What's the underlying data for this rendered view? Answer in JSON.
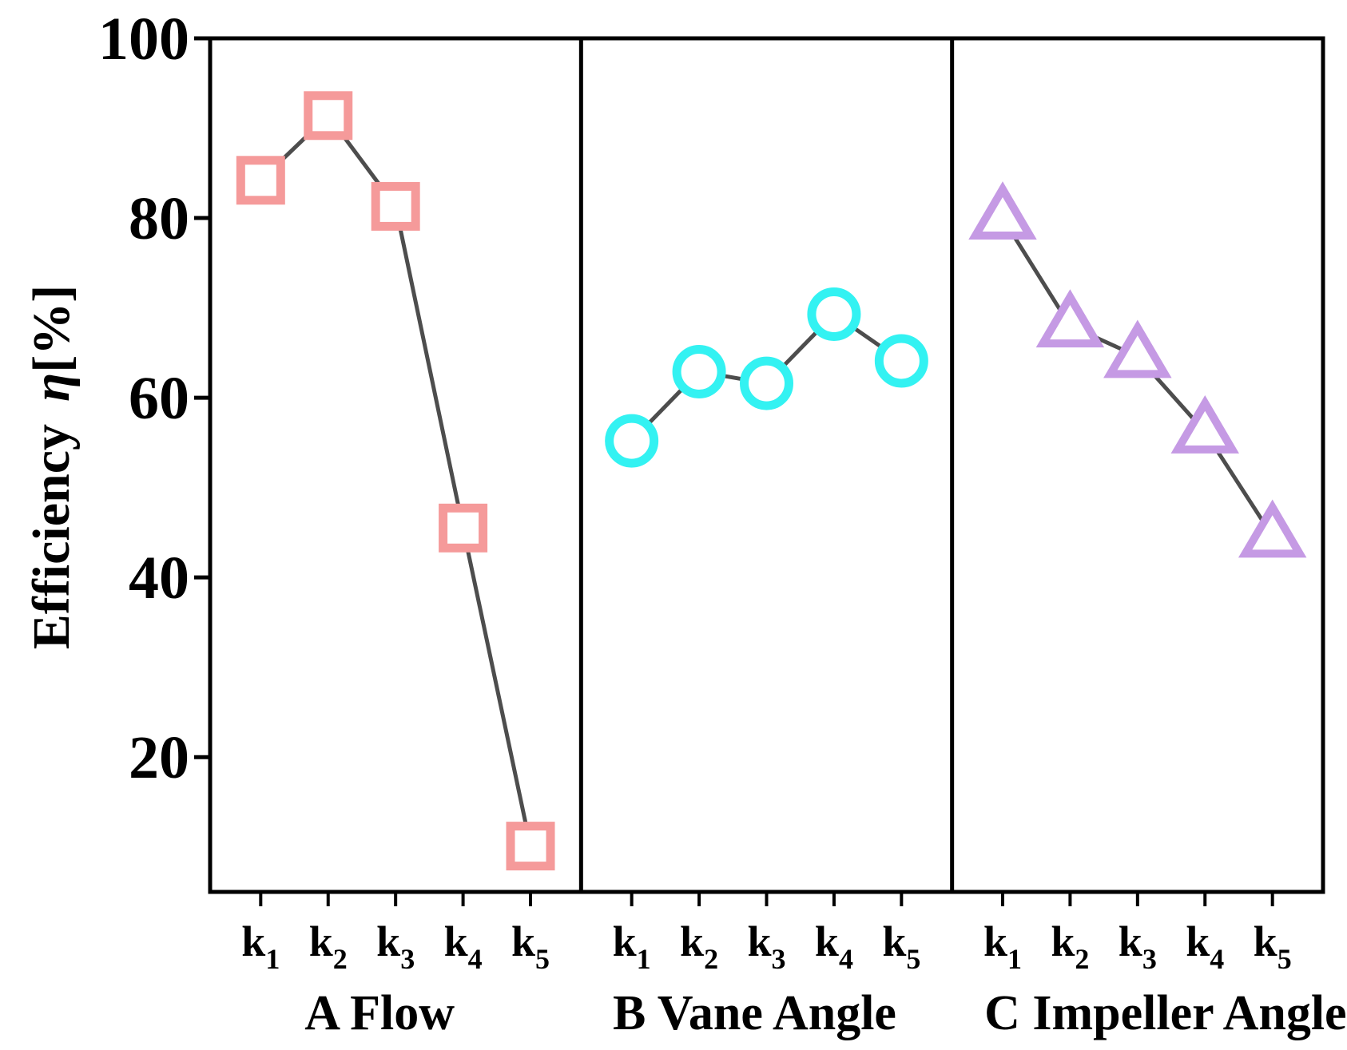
{
  "chart_data": {
    "type": "line",
    "title": "",
    "ylabel_text": "Efficiency",
    "ylabel_symbol": "η",
    "ylabel_unit": "[%]",
    "ylim": [
      5,
      100
    ],
    "yticks": [
      20,
      40,
      60,
      80,
      100
    ],
    "grid": false,
    "line_color": "#4d4d4d",
    "groups": [
      {
        "name": "A Flow",
        "marker": "square",
        "color": "#f59a9a",
        "categories": [
          {
            "base": "k",
            "sub": "1"
          },
          {
            "base": "k",
            "sub": "2"
          },
          {
            "base": "k",
            "sub": "3"
          },
          {
            "base": "k",
            "sub": "4"
          },
          {
            "base": "k",
            "sub": "5"
          }
        ],
        "values": [
          84.2,
          91.4,
          81.3,
          45.5,
          10.1
        ]
      },
      {
        "name": "B Vane Angle",
        "marker": "circle",
        "color": "#33f2f2",
        "categories": [
          {
            "base": "k",
            "sub": "1"
          },
          {
            "base": "k",
            "sub": "2"
          },
          {
            "base": "k",
            "sub": "3"
          },
          {
            "base": "k",
            "sub": "4"
          },
          {
            "base": "k",
            "sub": "5"
          }
        ],
        "values": [
          55.2,
          62.9,
          61.6,
          69.3,
          64.1
        ]
      },
      {
        "name": "C Impeller Angle",
        "marker": "triangle",
        "color": "#c59ae4",
        "categories": [
          {
            "base": "k",
            "sub": "1"
          },
          {
            "base": "k",
            "sub": "2"
          },
          {
            "base": "k",
            "sub": "3"
          },
          {
            "base": "k",
            "sub": "4"
          },
          {
            "base": "k",
            "sub": "5"
          }
        ],
        "values": [
          80.0,
          68.0,
          64.6,
          56.2,
          44.6
        ]
      }
    ]
  }
}
